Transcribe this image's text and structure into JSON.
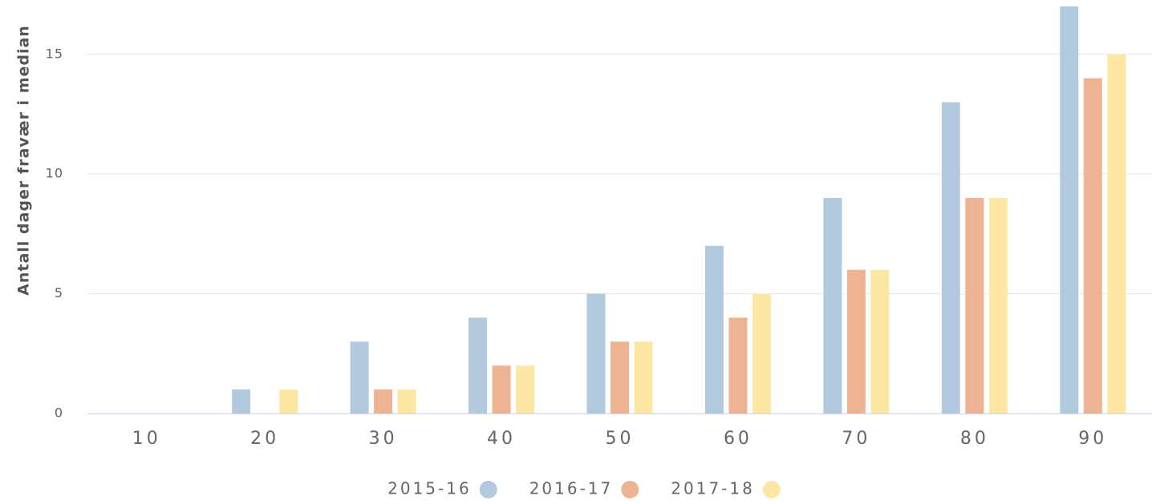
{
  "chart_data": {
    "type": "bar",
    "y_label": "Antall dager fravær i median",
    "categories": [
      "10",
      "20",
      "30",
      "40",
      "50",
      "60",
      "70",
      "80",
      "90"
    ],
    "series": [
      {
        "name": "2015-16",
        "color": "#b3c9dd",
        "values": [
          0,
          1,
          3,
          4,
          5,
          7,
          9,
          13,
          17
        ]
      },
      {
        "name": "2016-17",
        "color": "#edb393",
        "values": [
          0,
          0,
          1,
          2,
          3,
          4,
          6,
          9,
          14
        ]
      },
      {
        "name": "2017-18",
        "color": "#fde7a5",
        "values": [
          0,
          1,
          1,
          2,
          3,
          5,
          6,
          9,
          15
        ]
      }
    ],
    "ylim": [
      0,
      17
    ],
    "yticks": [
      0,
      5,
      10,
      15
    ],
    "grid": true,
    "legend": "bottom"
  }
}
